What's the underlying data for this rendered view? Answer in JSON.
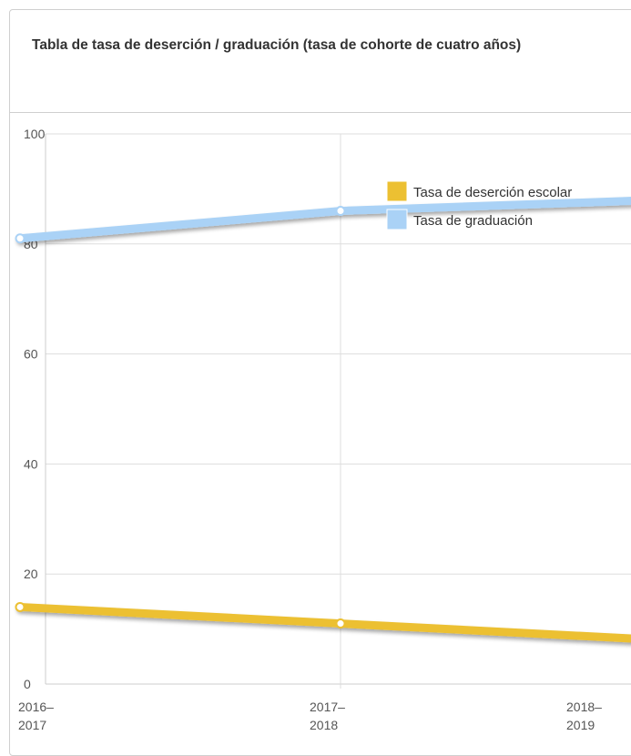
{
  "header": {
    "title": "Tabla de tasa de deserción / graduación (tasa de cohorte de cuatro años)"
  },
  "colors": {
    "dropout": "#ecc032",
    "graduation": "#aad2f6",
    "grid": "#dddddd",
    "border": "#cfcfcf"
  },
  "chart_data": {
    "type": "line",
    "title": "",
    "xlabel": "",
    "ylabel": "",
    "ylim": [
      0,
      100
    ],
    "y_ticks": [
      0,
      20,
      40,
      60,
      80,
      100
    ],
    "categories": [
      [
        "2016–",
        "2017"
      ],
      [
        "2017–",
        "2018"
      ],
      [
        "2018–",
        "2019"
      ]
    ],
    "series": [
      {
        "name": "Tasa de deserción escolar",
        "color": "#ecc032",
        "values": [
          14,
          11,
          8
        ]
      },
      {
        "name": "Tasa de graduación",
        "color": "#aad2f6",
        "values": [
          81,
          86,
          88
        ]
      }
    ],
    "grid": true,
    "legend": "top-right"
  }
}
